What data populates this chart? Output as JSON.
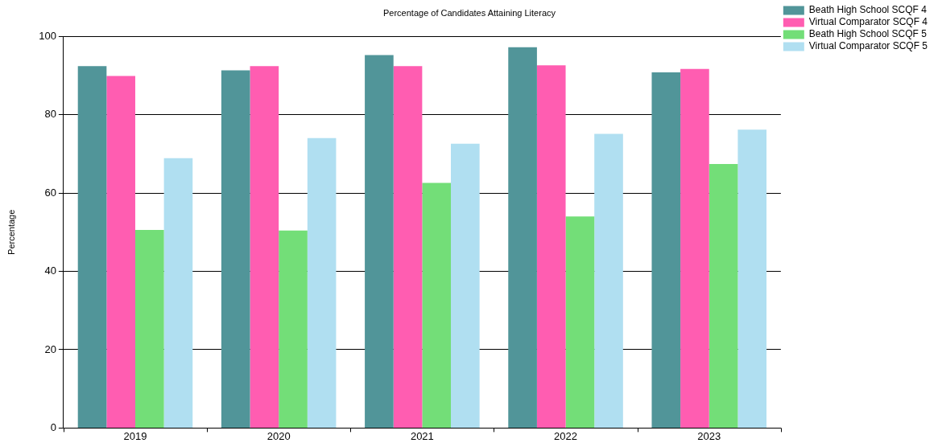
{
  "chart_data": {
    "type": "bar",
    "title": "Percentage of Candidates Attaining Literacy",
    "ylabel": "Percentage",
    "categories": [
      "2019",
      "2020",
      "2021",
      "2022",
      "2023"
    ],
    "series": [
      {
        "name": "Beath High School SCQF 4",
        "color": "#519599",
        "values": [
          92.4,
          91.3,
          95.2,
          97.2,
          90.8
        ]
      },
      {
        "name": "Virtual Comparator SCQF 4",
        "color": "#ff5db1",
        "values": [
          89.9,
          92.4,
          92.4,
          92.6,
          91.7
        ]
      },
      {
        "name": "Beath High School SCQF 5",
        "color": "#73de78",
        "values": [
          50.6,
          50.4,
          62.6,
          54.0,
          67.4
        ]
      },
      {
        "name": "Virtual Comparator SCQF 5",
        "color": "#b0dff1",
        "values": [
          68.9,
          74.0,
          72.6,
          75.1,
          76.2
        ]
      }
    ],
    "ylim": [
      0,
      100
    ],
    "yticks": [
      0,
      20,
      40,
      60,
      80,
      100
    ],
    "grid": "y",
    "legend": "top right"
  }
}
